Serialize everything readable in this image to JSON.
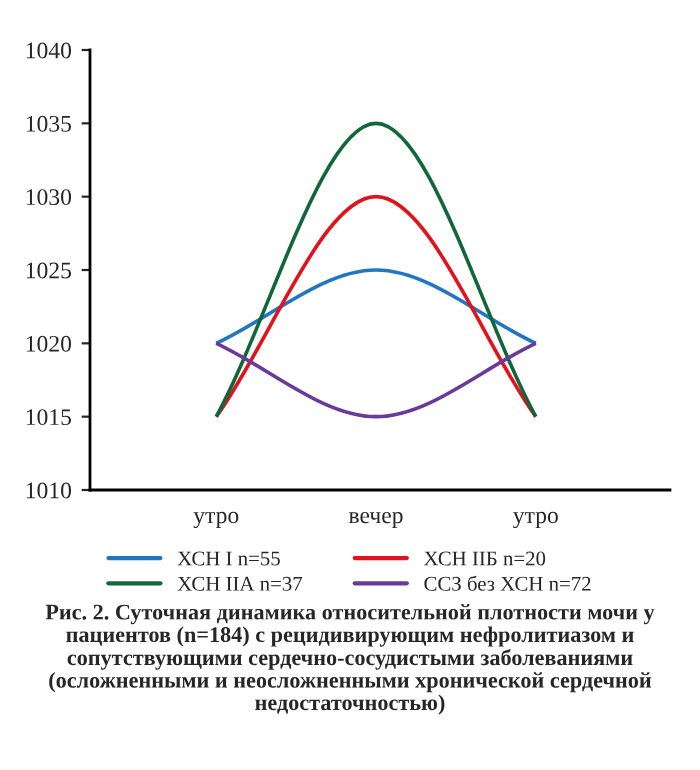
{
  "chart_data": {
    "type": "line",
    "categories": [
      "утро",
      "вечер",
      "утро"
    ],
    "ylim": [
      1010,
      1040
    ],
    "yticks": [
      1010,
      1015,
      1020,
      1025,
      1030,
      1035,
      1040
    ],
    "grid": false,
    "legend": "bottom",
    "marker": "none",
    "line_style": "solid",
    "series": [
      {
        "name": "ХСН I n=55",
        "color": "#1f77c4",
        "values": [
          1020,
          1025,
          1020
        ]
      },
      {
        "name": "ХСН IIБ n=20",
        "color": "#e3111b",
        "values": [
          1015,
          1030,
          1015
        ]
      },
      {
        "name": "ХСН IIА n=37",
        "color": "#10683a",
        "values": [
          1015,
          1035,
          1015
        ]
      },
      {
        "name": "ССЗ без ХСН n=72",
        "color": "#6a3a9a",
        "values": [
          1020,
          1015,
          1020
        ]
      }
    ],
    "annotations": [
      "Рис. 2. Суточная динамика относительной плотности мочи у пациентов (n=184) с рецидивирующим нефролитиазом и сопутствующими сердечно-сосудистыми заболеваниями (осложненными и неосложненными хронической сердечной недостаточностью)"
    ]
  }
}
